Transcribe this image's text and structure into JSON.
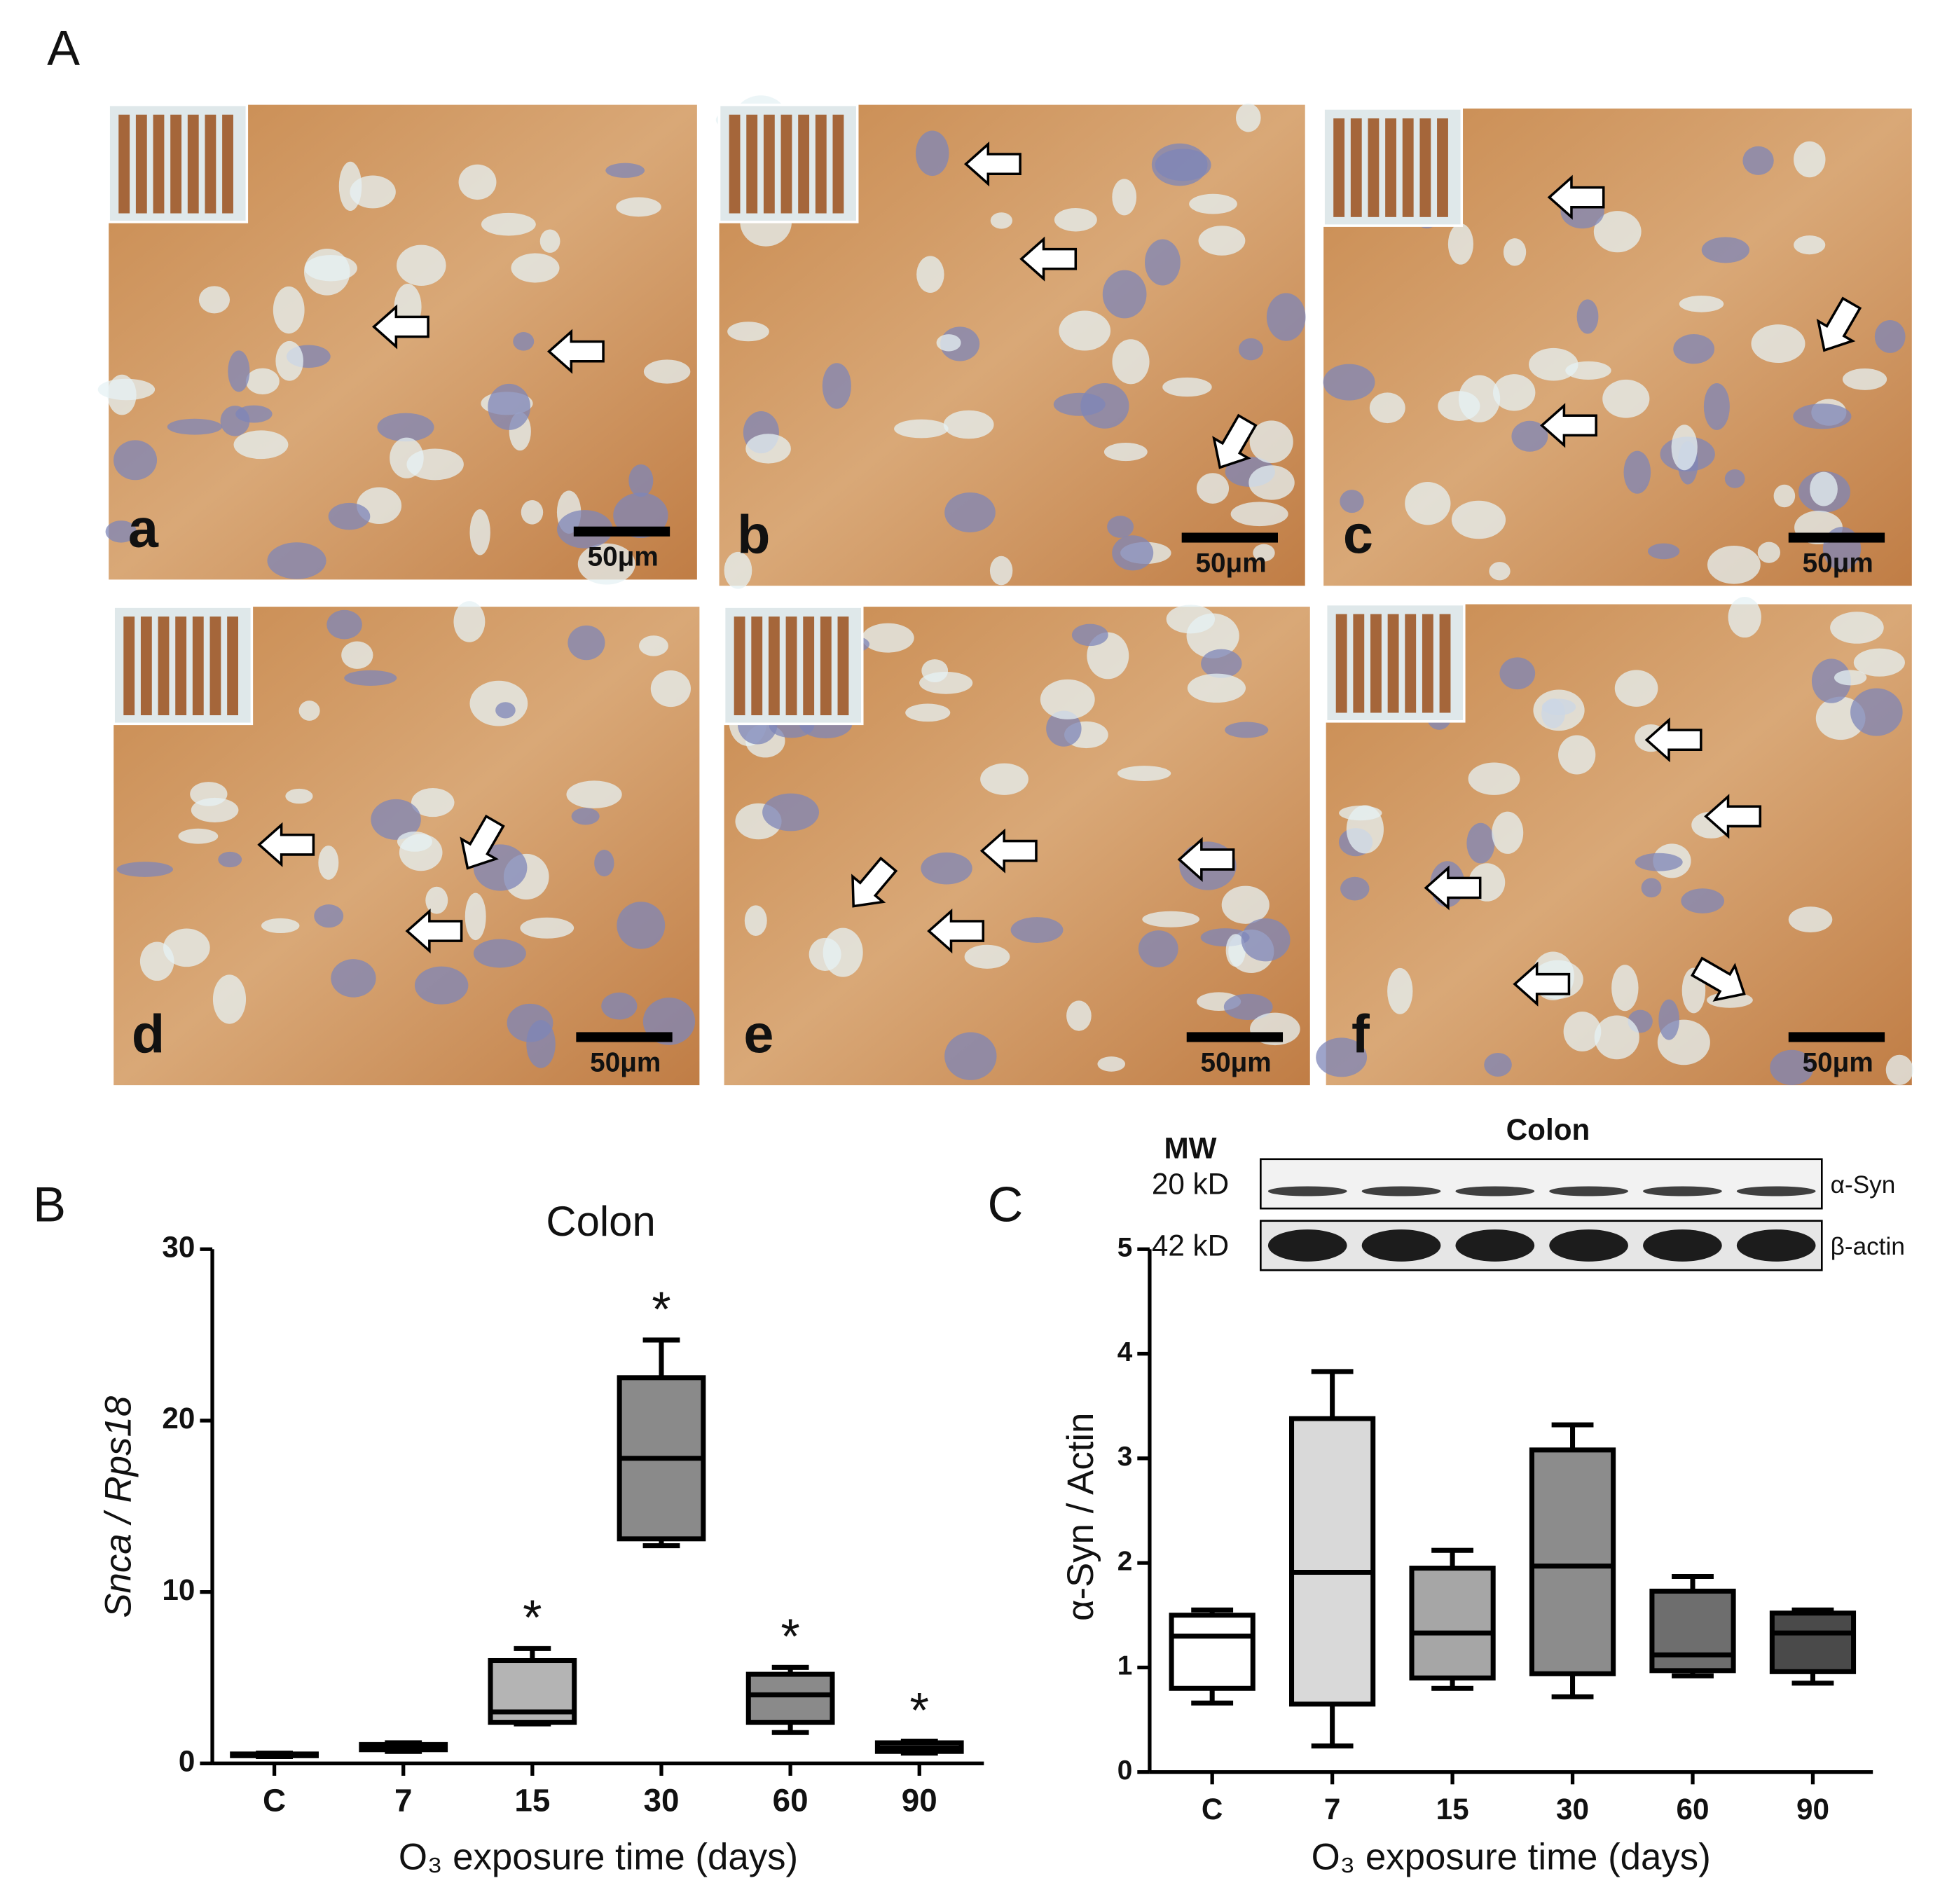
{
  "figure": {
    "label": "A",
    "panels": [
      {
        "label": "a",
        "scale_bar": "50μm"
      },
      {
        "label": "b",
        "scale_bar": "50μm"
      },
      {
        "label": "c",
        "scale_bar": "50μm"
      },
      {
        "label": "d",
        "scale_bar": "50μm"
      },
      {
        "label": "e",
        "scale_bar": "50μm"
      },
      {
        "label": "f",
        "scale_bar": "50μm"
      }
    ]
  },
  "blot": {
    "title": "Colon",
    "mw_header": "MW",
    "rows": [
      {
        "mw": "20 kD",
        "protein": "α-Syn"
      },
      {
        "mw": "42 kD",
        "protein": "β-actin"
      }
    ]
  },
  "chart_data": [
    {
      "type": "box",
      "panel_label": "B",
      "title": "Colon",
      "y_label": "Snca / Rps18",
      "x_label": "O₃ exposure time (days)",
      "categories": [
        "C",
        "7",
        "15",
        "30",
        "60",
        "90"
      ],
      "values": [
        [
          0.4,
          0.45,
          0.5,
          0.55,
          0.6
        ],
        [
          0.7,
          0.8,
          0.95,
          1.1,
          1.2
        ],
        [
          2.3,
          2.4,
          3.0,
          6.0,
          6.7
        ],
        [
          12.7,
          13.1,
          17.8,
          22.5,
          24.7
        ],
        [
          1.8,
          2.4,
          4.0,
          5.2,
          5.6
        ],
        [
          0.6,
          0.7,
          0.9,
          1.2,
          1.3
        ]
      ],
      "colors": [
        "#ffffff",
        "#d0d0d0",
        "#b4b4b4",
        "#8a8a8a",
        "#8a8a8a",
        "#9a9a9a"
      ],
      "significant": [
        false,
        false,
        true,
        true,
        true,
        true
      ],
      "significance_label": "*",
      "ylim": [
        0,
        30
      ],
      "yticks": [
        0,
        10,
        20,
        30
      ]
    },
    {
      "type": "box",
      "panel_label": "C",
      "y_label": "α-Syn / Actin",
      "x_label": "O₃ exposure time (days)",
      "categories": [
        "C",
        "7",
        "15",
        "30",
        "60",
        "90"
      ],
      "values": [
        [
          0.66,
          0.8,
          1.3,
          1.5,
          1.55
        ],
        [
          0.25,
          0.65,
          1.91,
          3.38,
          3.83
        ],
        [
          0.8,
          0.9,
          1.33,
          1.95,
          2.12
        ],
        [
          0.72,
          0.94,
          1.97,
          3.08,
          3.32
        ],
        [
          0.92,
          0.97,
          1.12,
          1.73,
          1.87
        ],
        [
          0.85,
          0.96,
          1.33,
          1.52,
          1.55
        ]
      ],
      "colors": [
        "#ffffff",
        "#d9d9d9",
        "#a6a6a6",
        "#8c8c8c",
        "#6e6e6e",
        "#4a4a4a"
      ],
      "ylim": [
        0,
        5
      ],
      "yticks": [
        0,
        1,
        2,
        3,
        4,
        5
      ]
    }
  ]
}
